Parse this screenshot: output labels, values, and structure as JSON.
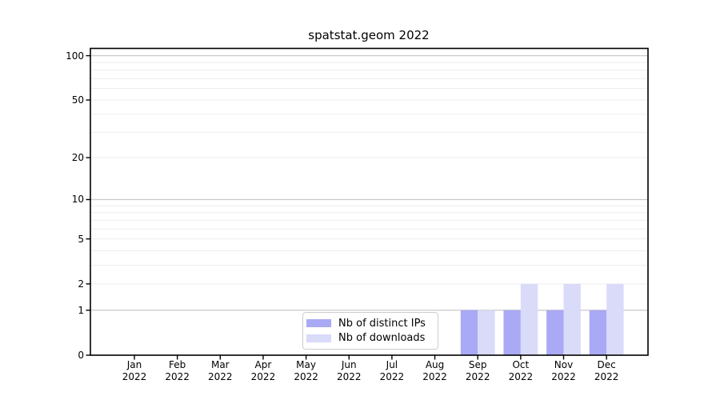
{
  "chart_data": {
    "type": "bar",
    "title": "spatstat.geom 2022",
    "categories": [
      "Jan 2022",
      "Feb 2022",
      "Mar 2022",
      "Apr 2022",
      "May 2022",
      "Jun 2022",
      "Jul 2022",
      "Aug 2022",
      "Sep 2022",
      "Oct 2022",
      "Nov 2022",
      "Dec 2022"
    ],
    "series": [
      {
        "name": "Nb of distinct IPs",
        "color": "#a9a9f5",
        "values": [
          0,
          0,
          0,
          0,
          0,
          0,
          0,
          0,
          1,
          1,
          1,
          1
        ]
      },
      {
        "name": "Nb of downloads",
        "color": "#dadaf9",
        "values": [
          0,
          0,
          0,
          0,
          0,
          0,
          0,
          0,
          1,
          2,
          2,
          2
        ]
      }
    ],
    "xlabel": "",
    "ylabel": "",
    "yscale": "log1p",
    "ylim": [
      0,
      112
    ],
    "yticks_labeled": [
      0,
      1,
      2,
      5,
      10,
      20,
      50,
      100
    ],
    "gridlines_major": [
      1,
      10,
      100
    ],
    "gridlines_minor": [
      2,
      3,
      4,
      5,
      6,
      7,
      8,
      9,
      20,
      30,
      40,
      50,
      60,
      70,
      80,
      90
    ],
    "grid": "horizontal",
    "legend_position": "inside-bottom-center"
  },
  "colors": {
    "bar_distinct_ips": "#a9a9f5",
    "bar_downloads": "#dadaf9",
    "grid_major": "#c9c9c9",
    "grid_minor": "#eeeeee",
    "axis_frame": "#000000",
    "background": "#ffffff"
  }
}
